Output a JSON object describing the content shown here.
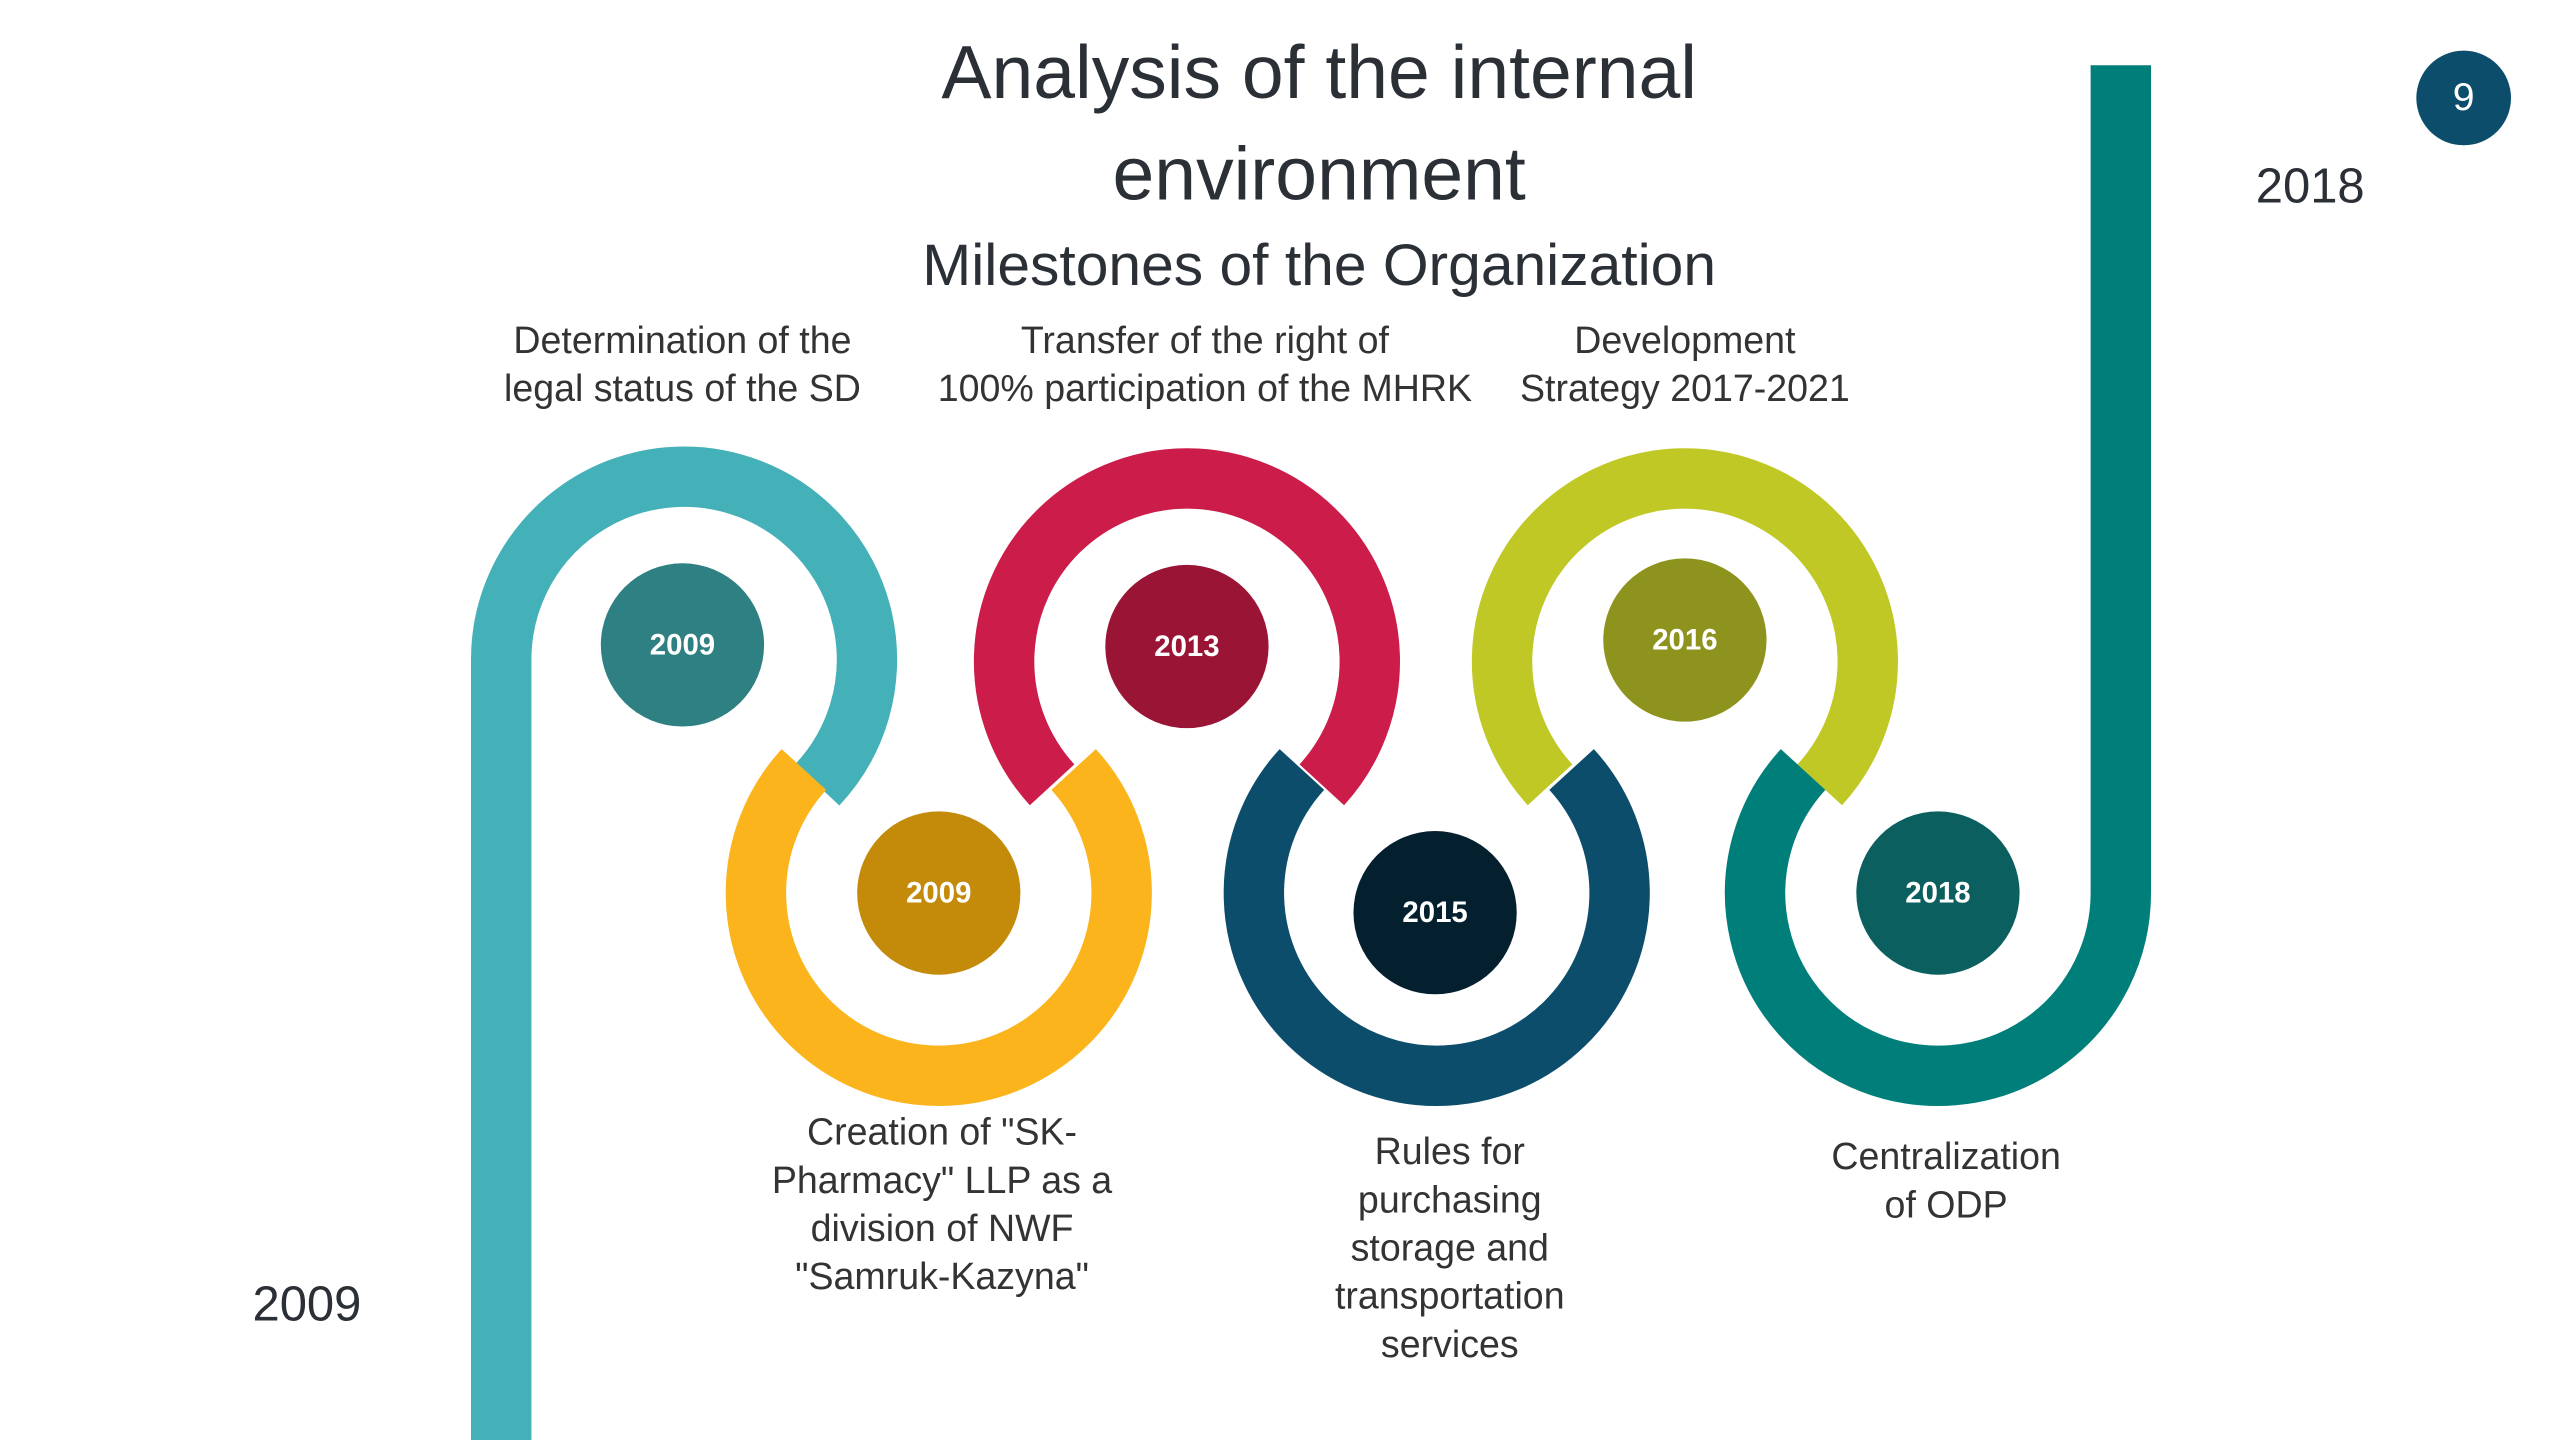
{
  "header": {
    "title_lines": [
      "Analysis of the internal",
      "environment"
    ],
    "subtitle": "Milestones of the Organization",
    "page_number": "9"
  },
  "start_year": "2009",
  "end_year": "2018",
  "milestones": [
    {
      "year": "2009",
      "label": [
        "Determination of the",
        "legal status of the SD"
      ]
    },
    {
      "year": "2009",
      "label": [
        "Creation of \"SK-",
        "Pharmacy\" LLP as a",
        "division of NWF",
        "\"Samruk-Kazyna\""
      ]
    },
    {
      "year": "2013",
      "label": [
        "Transfer of the right of",
        "100% participation of the MHRK"
      ]
    },
    {
      "year": "2015",
      "label": [
        "Rules for",
        "purchasing",
        "storage and",
        "transportation",
        "services"
      ]
    },
    {
      "year": "2016",
      "label": [
        "Development",
        "Strategy 2017-2021"
      ]
    },
    {
      "year": "2018",
      "label": [
        "Centralization",
        "of ODP"
      ]
    }
  ]
}
